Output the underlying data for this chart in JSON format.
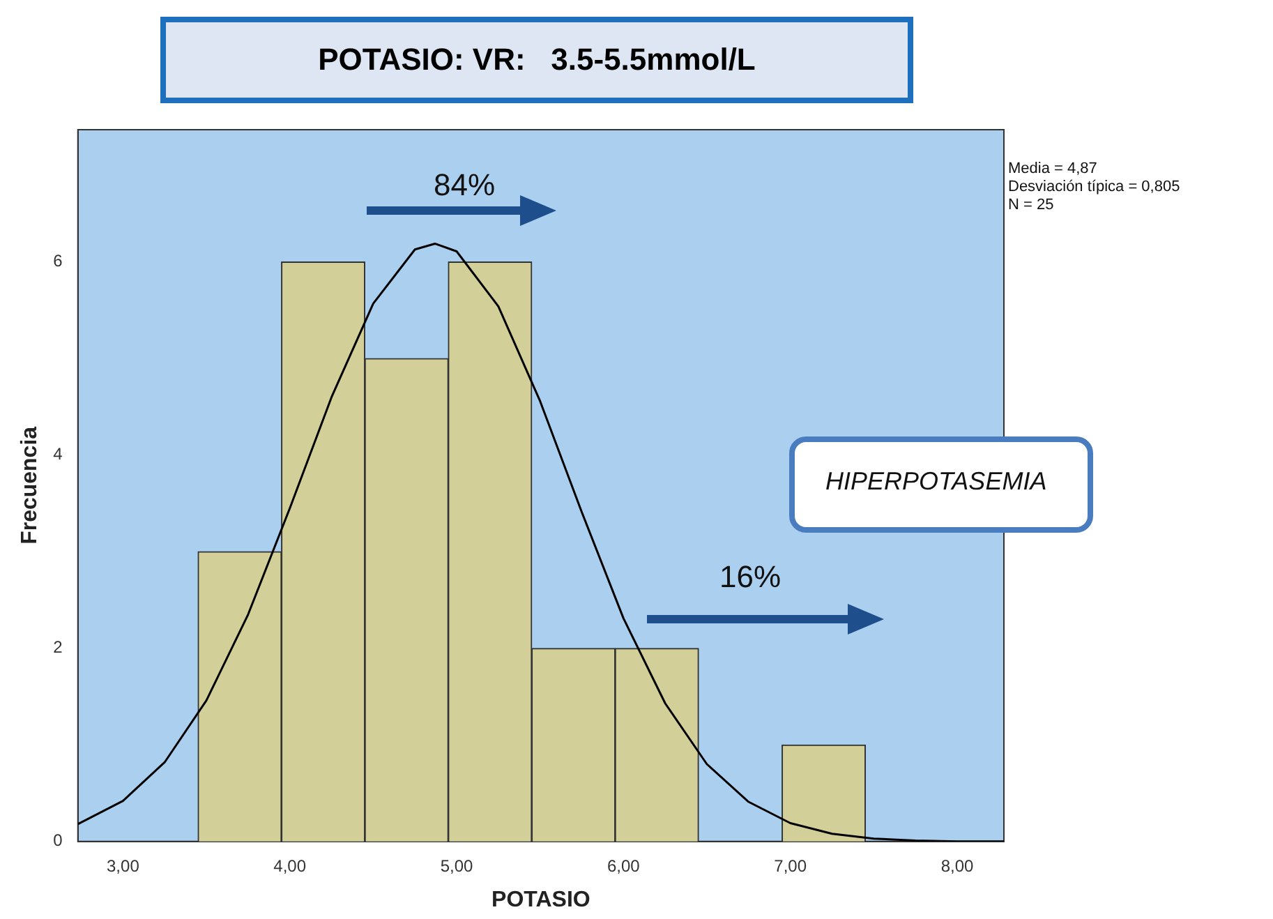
{
  "chart_data": {
    "type": "histogram",
    "title": "POTASIO: VR:   3.5-5.5mmol/L",
    "xlabel": "POTASIO",
    "ylabel": "Frecuencia",
    "bins": [
      3.45,
      3.95,
      4.45,
      4.95,
      5.45,
      5.95,
      6.45,
      6.95,
      7.45
    ],
    "values": [
      3,
      6,
      5,
      6,
      2,
      2,
      0,
      1
    ],
    "color": "#d3cf98",
    "series": [
      {
        "type": "line",
        "color": "#000000",
        "x": [
          2.73,
          3,
          3.25,
          3.5,
          3.75,
          4,
          4.25,
          4.5,
          4.75,
          4.87,
          5,
          5.25,
          5.5,
          5.75,
          6,
          6.25,
          6.5,
          6.75,
          7,
          7.25,
          7.5,
          7.75,
          8,
          8.28
        ],
        "values": [
          0.18,
          0.42,
          0.82,
          1.46,
          2.35,
          3.45,
          4.6,
          5.57,
          6.13,
          6.19,
          6.11,
          5.54,
          4.56,
          3.41,
          2.31,
          1.43,
          0.8,
          0.41,
          0.19,
          0.08,
          0.03,
          0.01,
          0,
          0
        ]
      }
    ],
    "xlim": [
      2.73,
      8.28
    ],
    "ylim": [
      0,
      7.37
    ],
    "xticks": [
      {
        "value": 3,
        "label": "3,00"
      },
      {
        "value": 4,
        "label": "4,00"
      },
      {
        "value": 5,
        "label": "5,00"
      },
      {
        "value": 6,
        "label": "6,00"
      },
      {
        "value": 7,
        "label": "7,00"
      },
      {
        "value": 8,
        "label": "8,00"
      }
    ],
    "yticks": [
      0,
      2,
      4,
      6
    ],
    "grid": false,
    "legend": false,
    "marker": "none",
    "line_style": "solid",
    "annotations": [
      "Media = 4,87",
      "Desviación típica = 0,805",
      "N = 25",
      "84%",
      "16%",
      "HIPERPOTASEMIA"
    ]
  }
}
